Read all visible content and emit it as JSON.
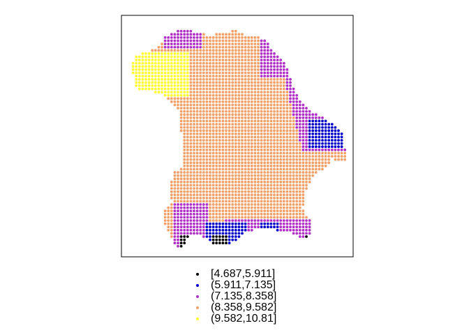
{
  "map": {
    "region": "Bavaria",
    "frame": "box"
  },
  "legend": {
    "items": [
      {
        "label": "[4.687,5.911]",
        "color": "#000000"
      },
      {
        "label": "(5.911,7.135]",
        "color": "#0000cc"
      },
      {
        "label": "(7.135,8.358]",
        "color": "#b030c8"
      },
      {
        "label": "(8.358,9.582]",
        "color": "#f4a068"
      },
      {
        "label": "(9.582,10.81]",
        "color": "#ffff33"
      }
    ]
  }
}
